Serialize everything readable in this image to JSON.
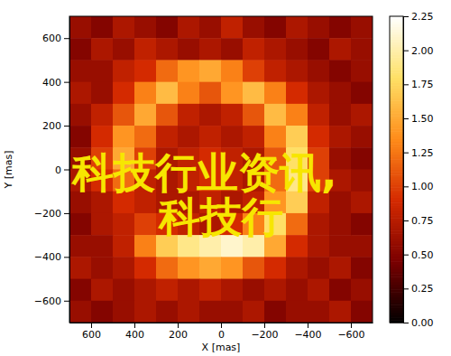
{
  "chart_data": {
    "type": "heatmap",
    "xlabel": "X [mas]",
    "ylabel": "Y [mas]",
    "annotations": [
      "科技行业资讯,",
      "科技行"
    ],
    "x": [
      650,
      550,
      450,
      350,
      250,
      150,
      50,
      -50,
      -150,
      -250,
      -350,
      -450,
      -550,
      -650
    ],
    "y": [
      650,
      550,
      450,
      350,
      250,
      150,
      50,
      -50,
      -150,
      -250,
      -350,
      -450,
      -550,
      -650
    ],
    "values": [
      [
        0.6,
        0.5,
        0.7,
        0.6,
        0.5,
        0.7,
        0.6,
        0.8,
        0.6,
        0.5,
        0.7,
        0.6,
        0.5,
        0.6
      ],
      [
        0.5,
        0.7,
        0.6,
        0.8,
        0.7,
        0.6,
        0.7,
        0.6,
        0.8,
        0.7,
        0.6,
        0.5,
        0.7,
        0.6
      ],
      [
        0.6,
        0.6,
        0.8,
        0.9,
        1.2,
        1.4,
        1.5,
        1.3,
        1.0,
        0.8,
        0.7,
        0.6,
        0.5,
        0.6
      ],
      [
        0.7,
        0.6,
        0.9,
        1.3,
        1.6,
        1.3,
        1.1,
        1.4,
        1.6,
        1.3,
        0.9,
        0.7,
        0.6,
        0.5
      ],
      [
        0.6,
        0.8,
        1.1,
        1.5,
        1.1,
        0.8,
        0.7,
        0.8,
        1.1,
        1.6,
        1.3,
        0.8,
        0.6,
        0.7
      ],
      [
        0.5,
        0.9,
        1.4,
        1.2,
        0.8,
        0.7,
        0.8,
        0.7,
        0.8,
        1.3,
        1.7,
        0.9,
        0.7,
        0.6
      ],
      [
        0.6,
        1.0,
        1.5,
        1.0,
        0.7,
        0.8,
        0.9,
        0.8,
        0.7,
        1.1,
        1.8,
        1.0,
        0.6,
        0.5
      ],
      [
        0.7,
        0.9,
        1.2,
        0.8,
        0.7,
        0.8,
        0.9,
        0.8,
        0.7,
        1.2,
        1.9,
        1.0,
        0.7,
        0.6
      ],
      [
        0.6,
        0.7,
        0.9,
        0.8,
        0.7,
        0.7,
        0.8,
        0.7,
        0.8,
        1.4,
        1.7,
        0.8,
        0.6,
        0.7
      ],
      [
        0.5,
        0.7,
        0.8,
        1.0,
        0.9,
        0.8,
        0.7,
        0.9,
        1.3,
        1.8,
        1.2,
        0.7,
        0.6,
        0.5
      ],
      [
        0.6,
        0.6,
        0.8,
        1.3,
        1.7,
        1.9,
        2.0,
        2.1,
        2.0,
        1.5,
        0.9,
        0.7,
        0.6,
        0.6
      ],
      [
        0.7,
        0.6,
        0.7,
        0.9,
        1.2,
        1.4,
        1.5,
        1.4,
        1.1,
        0.9,
        0.7,
        0.6,
        0.7,
        0.5
      ],
      [
        0.5,
        0.7,
        0.6,
        0.7,
        0.8,
        0.7,
        0.8,
        0.7,
        0.6,
        0.7,
        0.6,
        0.7,
        0.5,
        0.6
      ],
      [
        0.6,
        0.5,
        0.6,
        0.7,
        0.6,
        0.7,
        0.6,
        0.6,
        0.7,
        0.5,
        0.6,
        0.6,
        0.7,
        0.5
      ]
    ],
    "xlim": [
      700,
      -700
    ],
    "ylim": [
      -700,
      700
    ],
    "xticks": [
      600,
      400,
      200,
      0,
      {
        "value": -200,
        "label": "−200"
      },
      {
        "value": -400,
        "label": "−400"
      },
      {
        "value": -600,
        "label": "−600"
      }
    ],
    "yticks": [
      {
        "value": -600,
        "label": "−600"
      },
      {
        "value": -400,
        "label": "−400"
      },
      {
        "value": -200,
        "label": "−200"
      },
      0,
      200,
      400,
      600
    ],
    "color_range": [
      0,
      2.25
    ],
    "color_ticks": [
      {
        "value": 0,
        "label": "0.00"
      },
      {
        "value": 0.25,
        "label": "0.25"
      },
      {
        "value": 0.5,
        "label": "0.50"
      },
      {
        "value": 0.75,
        "label": "0.75"
      },
      {
        "value": 1,
        "label": "1.00"
      },
      {
        "value": 1.25,
        "label": "1.25"
      },
      {
        "value": 1.5,
        "label": "1.50"
      },
      {
        "value": 1.75,
        "label": "1.75"
      },
      {
        "value": 2,
        "label": "2.00"
      },
      {
        "value": 2.25,
        "label": "2.25"
      }
    ]
  }
}
